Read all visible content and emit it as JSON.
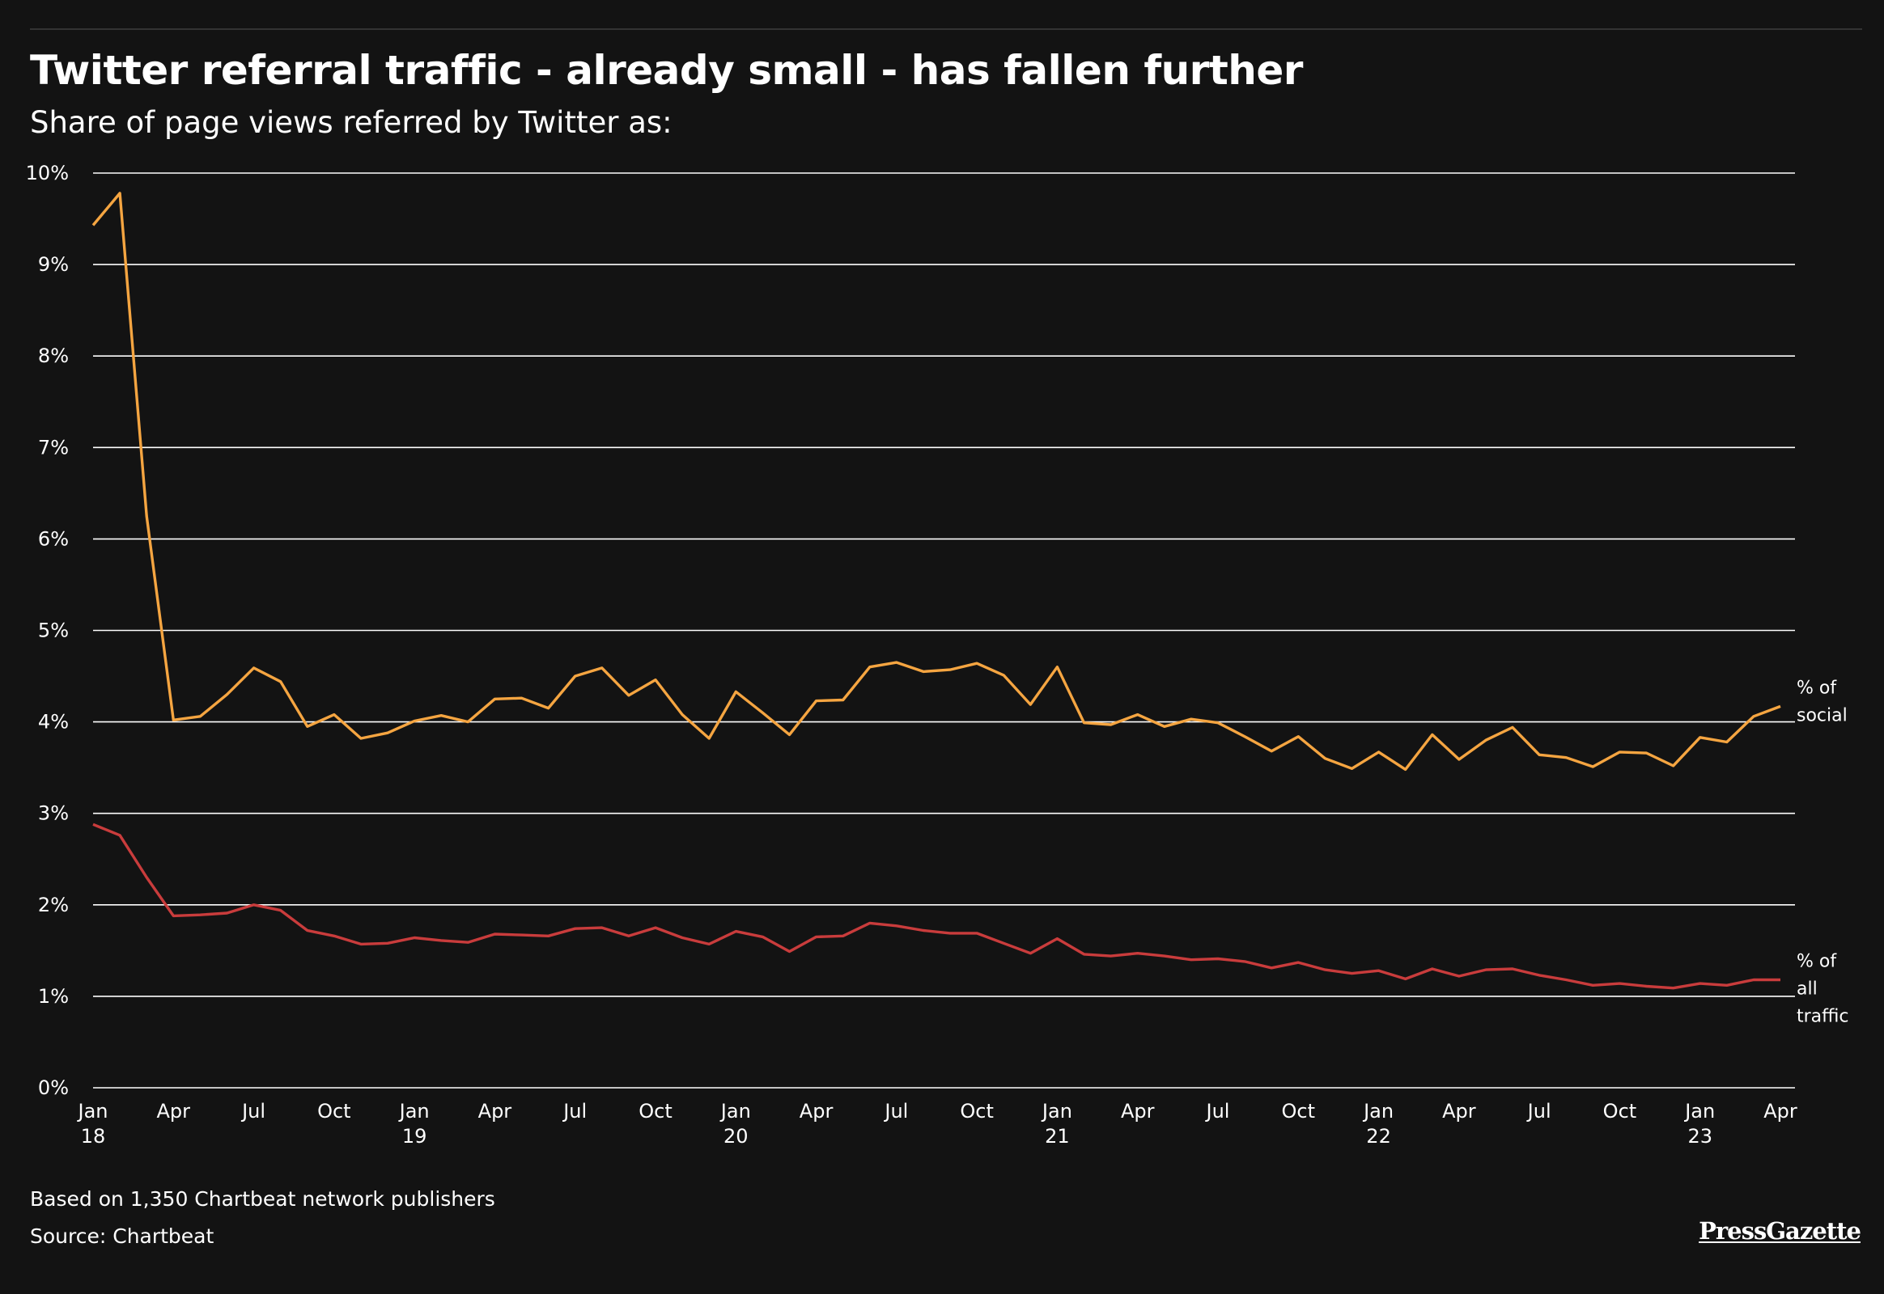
{
  "header": {
    "title": "Twitter referral traffic - already small - has fallen further",
    "subtitle": "Share of page views referred by Twitter as:"
  },
  "footer": {
    "note": "Based on 1,350 Chartbeat network publishers",
    "source": "Source: Chartbeat",
    "logo": "PressGazette"
  },
  "colors": {
    "background": "#131313",
    "gridline": "#ffffff",
    "social": "#f5a541",
    "all_traffic": "#c93c3c"
  },
  "chart_data": {
    "type": "line",
    "title": "Twitter referral traffic - already small - has fallen further",
    "subtitle": "Share of page views referred by Twitter as:",
    "ylim": [
      0,
      10
    ],
    "y_ticks": [
      "0%",
      "1%",
      "2%",
      "3%",
      "4%",
      "5%",
      "6%",
      "7%",
      "8%",
      "9%",
      "10%"
    ],
    "x_ticks": [
      {
        "index": 0,
        "label": "Jan",
        "year": "18"
      },
      {
        "index": 3,
        "label": "Apr",
        "year": ""
      },
      {
        "index": 6,
        "label": "Jul",
        "year": ""
      },
      {
        "index": 9,
        "label": "Oct",
        "year": ""
      },
      {
        "index": 12,
        "label": "Jan",
        "year": "19"
      },
      {
        "index": 15,
        "label": "Apr",
        "year": ""
      },
      {
        "index": 18,
        "label": "Jul",
        "year": ""
      },
      {
        "index": 21,
        "label": "Oct",
        "year": ""
      },
      {
        "index": 24,
        "label": "Jan",
        "year": "20"
      },
      {
        "index": 27,
        "label": "Apr",
        "year": ""
      },
      {
        "index": 30,
        "label": "Jul",
        "year": ""
      },
      {
        "index": 33,
        "label": "Oct",
        "year": ""
      },
      {
        "index": 36,
        "label": "Jan",
        "year": "21"
      },
      {
        "index": 39,
        "label": "Apr",
        "year": ""
      },
      {
        "index": 42,
        "label": "Jul",
        "year": ""
      },
      {
        "index": 45,
        "label": "Oct",
        "year": ""
      },
      {
        "index": 48,
        "label": "Jan",
        "year": "22"
      },
      {
        "index": 51,
        "label": "Apr",
        "year": ""
      },
      {
        "index": 54,
        "label": "Jul",
        "year": ""
      },
      {
        "index": 57,
        "label": "Oct",
        "year": ""
      },
      {
        "index": 60,
        "label": "Jan",
        "year": "23"
      },
      {
        "index": 63,
        "label": "Apr",
        "year": ""
      }
    ],
    "x_count": 64,
    "series": [
      {
        "name": "% of social",
        "label_lines": [
          "% of",
          "social"
        ],
        "color": "#f5a541",
        "values": [
          9.43,
          9.78,
          6.25,
          4.02,
          4.06,
          4.3,
          4.59,
          4.44,
          3.95,
          4.08,
          3.82,
          3.88,
          4.01,
          4.07,
          4.0,
          4.25,
          4.26,
          4.15,
          4.5,
          4.59,
          4.29,
          4.46,
          4.08,
          3.82,
          4.33,
          4.1,
          3.86,
          4.23,
          4.24,
          4.6,
          4.65,
          4.55,
          4.57,
          4.64,
          4.51,
          4.19,
          4.6,
          3.99,
          3.97,
          4.08,
          3.95,
          4.03,
          3.99,
          3.84,
          3.68,
          3.84,
          3.6,
          3.49,
          3.67,
          3.48,
          3.86,
          3.59,
          3.8,
          3.94,
          3.64,
          3.61,
          3.51,
          3.67,
          3.66,
          3.52,
          3.83,
          3.78,
          4.06,
          4.17
        ]
      },
      {
        "name": "% of all traffic",
        "label_lines": [
          "% of",
          "all",
          "traffic"
        ],
        "color": "#c93c3c",
        "values": [
          2.88,
          2.76,
          2.3,
          1.88,
          1.89,
          1.91,
          2.0,
          1.94,
          1.72,
          1.66,
          1.57,
          1.58,
          1.64,
          1.61,
          1.59,
          1.68,
          1.67,
          1.66,
          1.74,
          1.75,
          1.66,
          1.75,
          1.64,
          1.57,
          1.71,
          1.65,
          1.49,
          1.65,
          1.66,
          1.8,
          1.77,
          1.72,
          1.69,
          1.69,
          1.58,
          1.47,
          1.63,
          1.46,
          1.44,
          1.47,
          1.44,
          1.4,
          1.41,
          1.38,
          1.31,
          1.37,
          1.29,
          1.25,
          1.28,
          1.19,
          1.3,
          1.22,
          1.29,
          1.3,
          1.23,
          1.18,
          1.12,
          1.14,
          1.11,
          1.09,
          1.14,
          1.12,
          1.18,
          1.18
        ]
      }
    ]
  }
}
